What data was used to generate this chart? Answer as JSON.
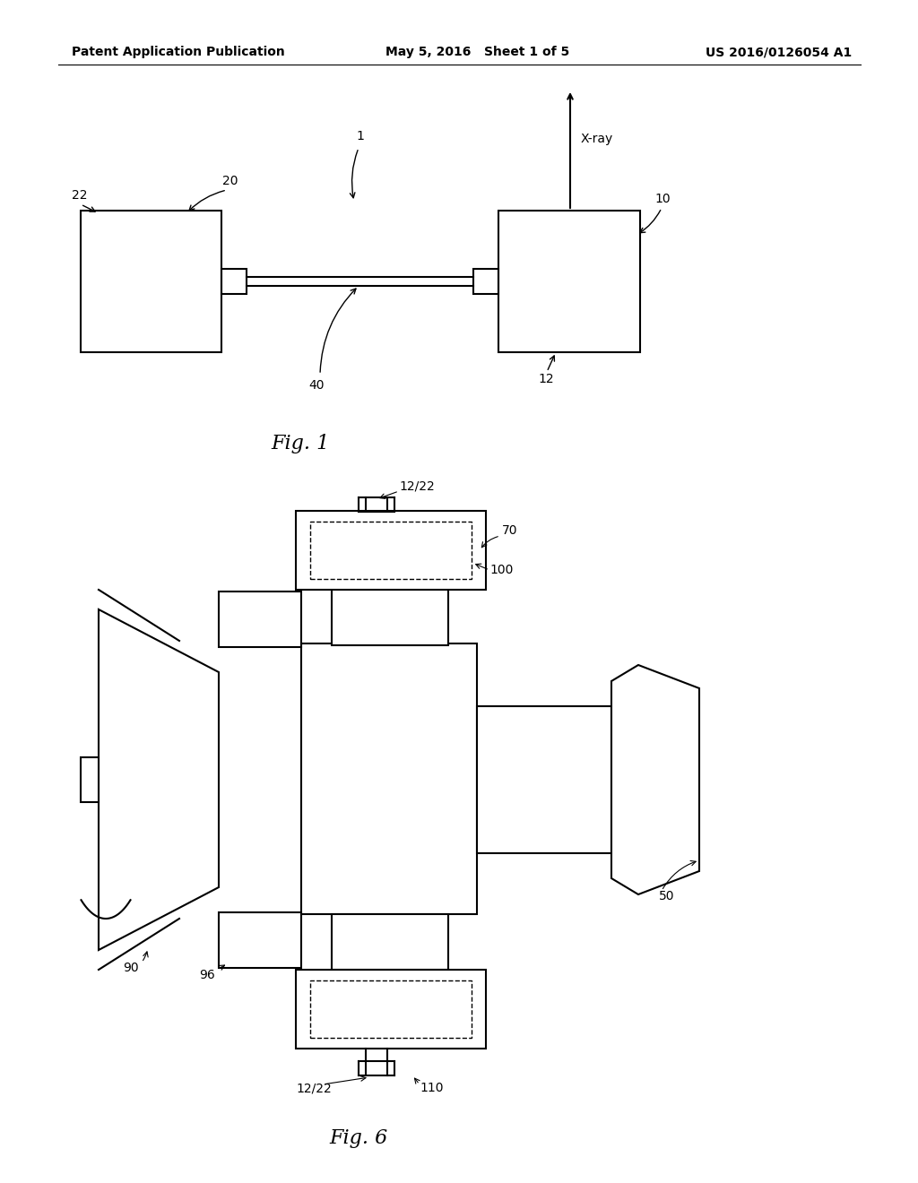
{
  "bg_color": "#ffffff",
  "line_color": "#000000",
  "header": {
    "left": "Patent Application Publication",
    "center": "May 5, 2016   Sheet 1 of 5",
    "right": "US 2016/0126054 A1"
  }
}
